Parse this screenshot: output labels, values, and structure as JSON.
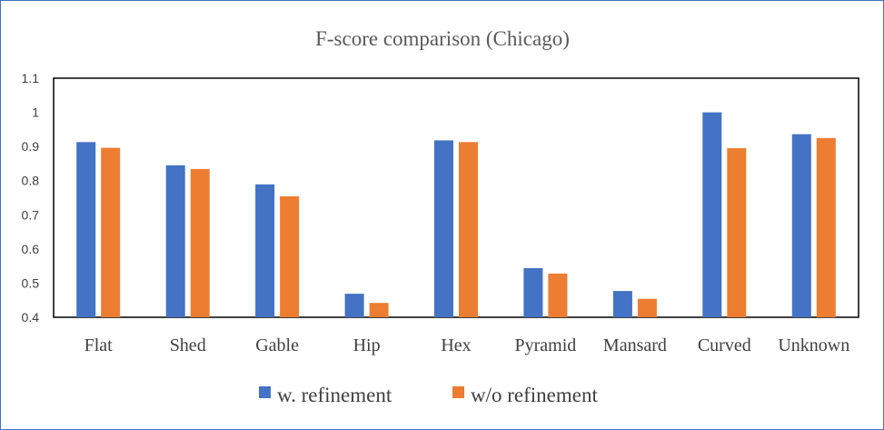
{
  "chart_data": {
    "type": "bar",
    "title": "F-score comparison (Chicago)",
    "xlabel": "",
    "ylabel": "",
    "categories": [
      "Flat",
      "Shed",
      "Gable",
      "Hip",
      "Hex",
      "Pyramid",
      "Mansard",
      "Curved",
      "Unknown"
    ],
    "series": [
      {
        "name": "w. refinement",
        "color": "#4472c4",
        "values": [
          0.913,
          0.845,
          0.789,
          0.469,
          0.918,
          0.544,
          0.477,
          1.0,
          0.936
        ]
      },
      {
        "name": "w/o refinement",
        "color": "#ed7d31",
        "values": [
          0.896,
          0.834,
          0.754,
          0.442,
          0.913,
          0.528,
          0.454,
          0.895,
          0.925
        ]
      }
    ],
    "ylim": [
      0.4,
      1.1
    ],
    "yticks": [
      "0.4",
      "0.5",
      "0.6",
      "0.7",
      "0.8",
      "0.9",
      "1",
      "1.1"
    ],
    "grid": false,
    "legend_position": "bottom"
  }
}
